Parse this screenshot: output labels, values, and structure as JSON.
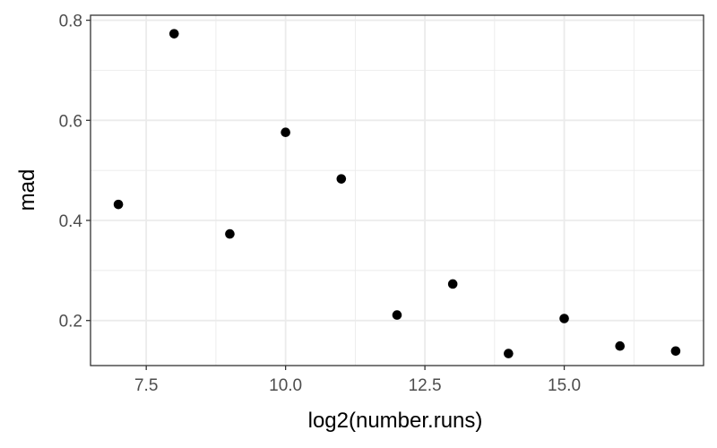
{
  "chart_data": {
    "type": "scatter",
    "xlabel": "log2(number.runs)",
    "ylabel": "mad",
    "xlim": [
      6.5,
      17.5
    ],
    "ylim": [
      0.11,
      0.81
    ],
    "x_ticks": [
      7.5,
      10.0,
      12.5,
      15.0
    ],
    "x_tick_labels": [
      "7.5",
      "10.0",
      "12.5",
      "15.0"
    ],
    "y_ticks": [
      0.2,
      0.4,
      0.6,
      0.8
    ],
    "y_tick_labels": [
      "0.2",
      "0.4",
      "0.6",
      "0.8"
    ],
    "x_minor_ticks": [
      8.75,
      11.25,
      13.75,
      16.25
    ],
    "y_minor_ticks": [
      0.3,
      0.5,
      0.7
    ],
    "grid": true,
    "theme": "bw",
    "colors": {
      "point": "#000000",
      "grid": "#ebebeb",
      "border": "#333333",
      "background": "#ffffff"
    },
    "points": [
      {
        "x": 7,
        "y": 0.432
      },
      {
        "x": 8,
        "y": 0.773
      },
      {
        "x": 9,
        "y": 0.373
      },
      {
        "x": 10,
        "y": 0.576
      },
      {
        "x": 11,
        "y": 0.483
      },
      {
        "x": 12,
        "y": 0.211
      },
      {
        "x": 13,
        "y": 0.273
      },
      {
        "x": 14,
        "y": 0.134
      },
      {
        "x": 15,
        "y": 0.204
      },
      {
        "x": 16,
        "y": 0.149
      },
      {
        "x": 17,
        "y": 0.139
      }
    ]
  }
}
